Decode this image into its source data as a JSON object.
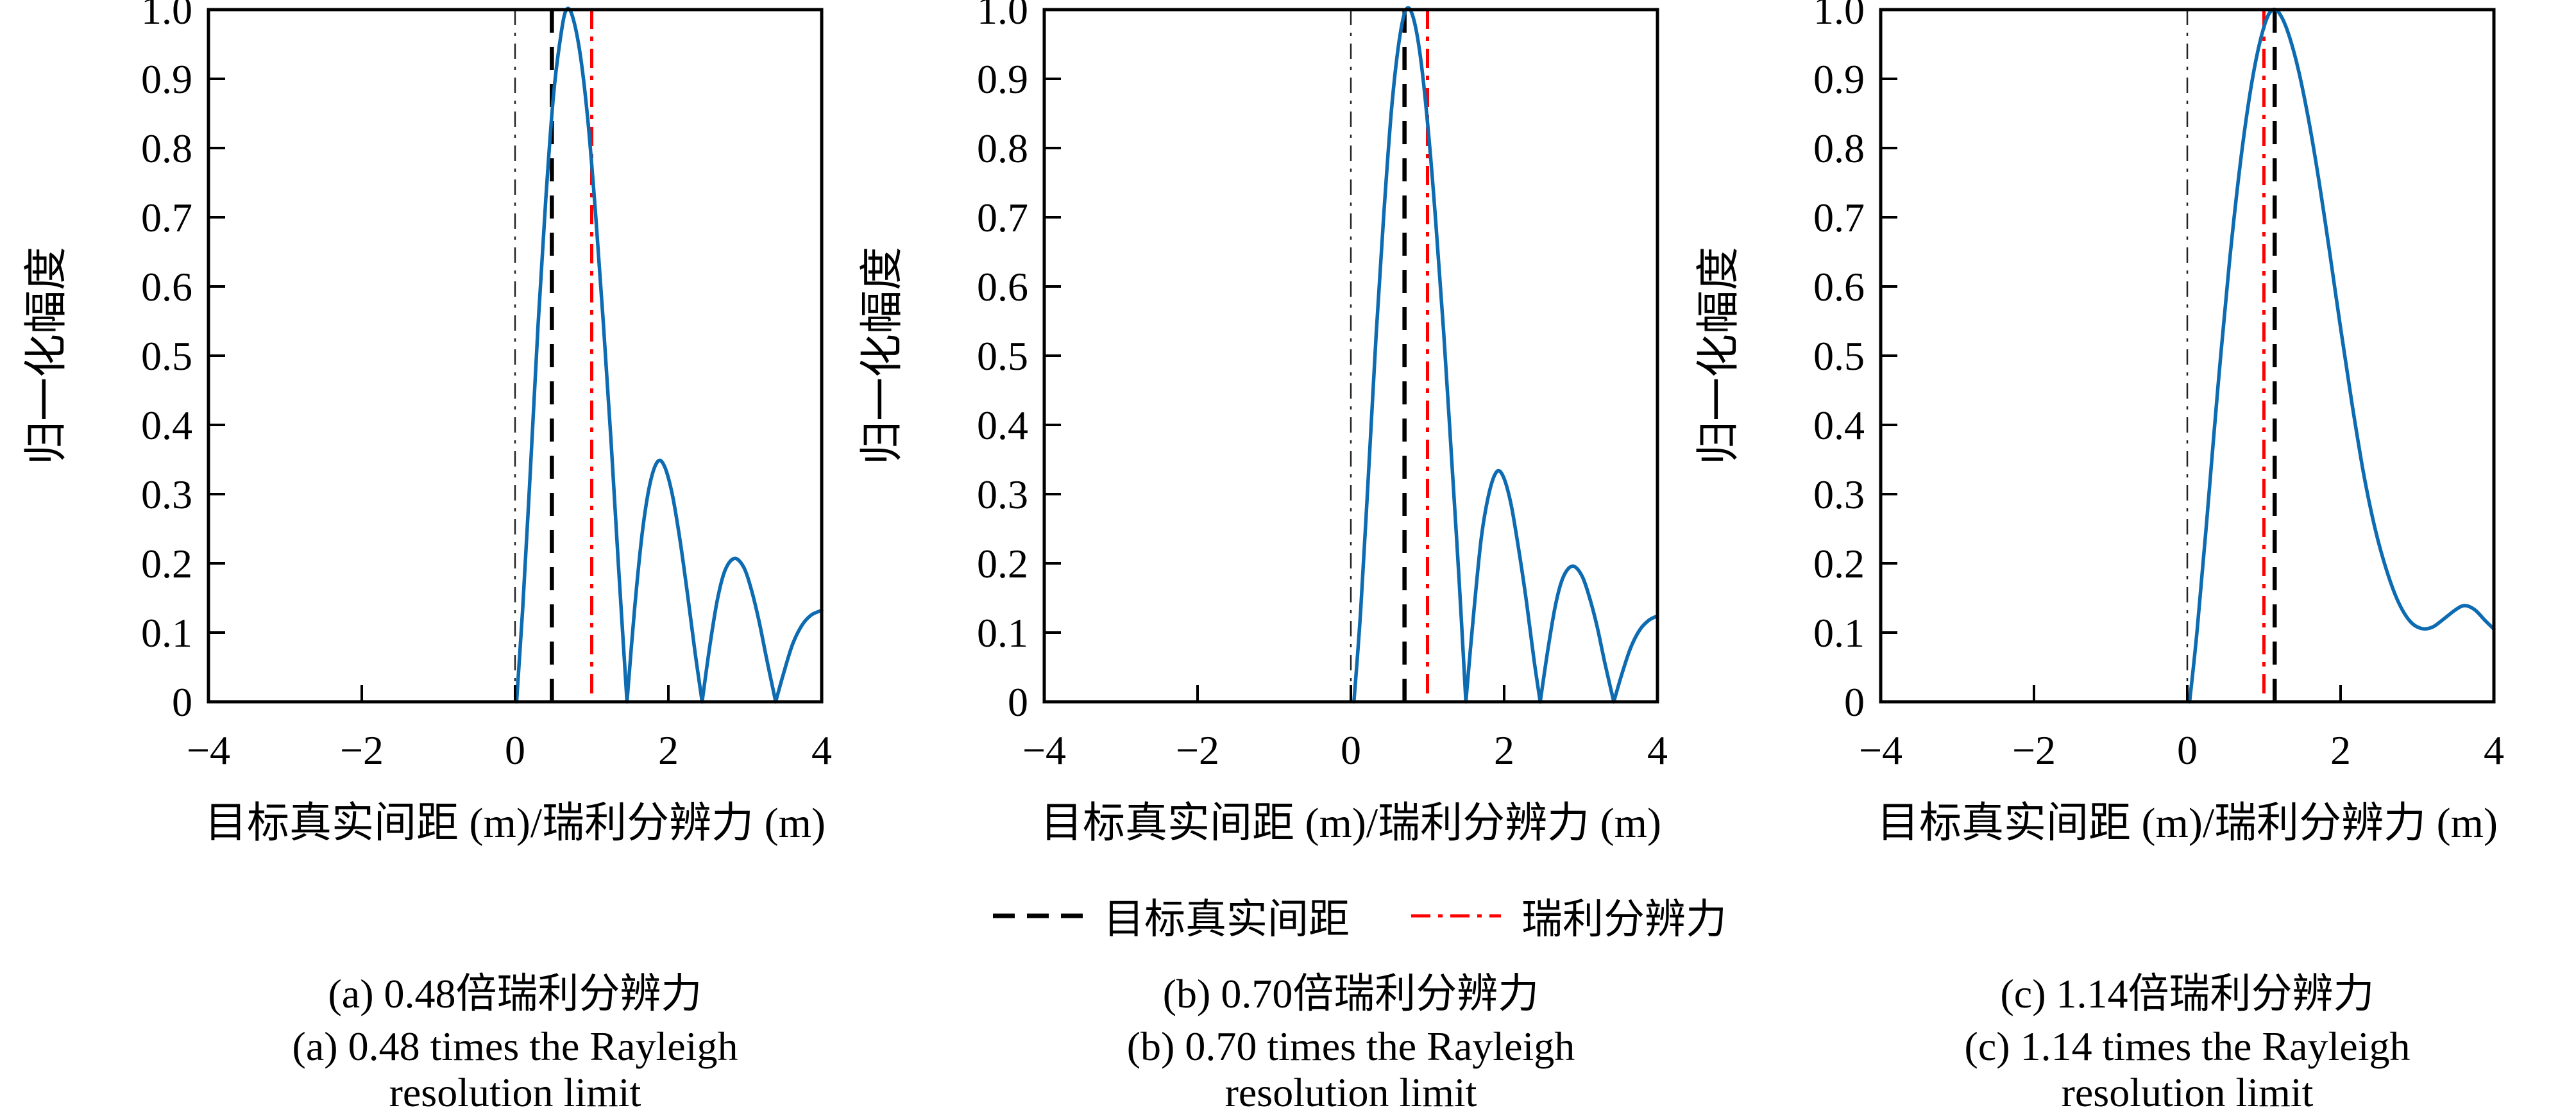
{
  "figure": {
    "ylabel": "归一化幅度",
    "xlabel": "目标真实间距 (m)/瑞利分辨力 (m)",
    "background": "#ffffff"
  },
  "colors": {
    "curve": "#0d6bb1",
    "target_line": "#000000",
    "rayleigh_line": "#ff0000",
    "zero_line": "#222222",
    "axis": "#000000"
  },
  "legend": {
    "items": [
      {
        "label": "目标真实间距",
        "style": "dashed",
        "color": "#000000"
      },
      {
        "label": "瑞利分辨力",
        "style": "dashdot",
        "color": "#ff0000"
      }
    ]
  },
  "chart_data": [
    {
      "id": "a",
      "type": "line",
      "title_zh": "(a) 0.48倍瑞利分辨力",
      "title_en_line1": "(a) 0.48 times the Rayleigh",
      "title_en_line2": "resolution limit",
      "target_spacing_ratio": 0.48,
      "xlabel": "目标真实间距 (m)/瑞利分辨力 (m)",
      "ylabel": "归一化幅度",
      "xlim": [
        -4,
        4
      ],
      "ylim": [
        0,
        1
      ],
      "xticks": [
        -4,
        -2,
        0,
        2,
        4
      ],
      "xtick_labels": [
        "−4",
        "−2",
        "0",
        "2",
        "4"
      ],
      "yticks": [
        0,
        0.1,
        0.2,
        0.3,
        0.4,
        0.5,
        0.6,
        0.7,
        0.8,
        0.9,
        1.0
      ],
      "ytick_labels": [
        "0",
        "0.1",
        "0.2",
        "0.3",
        "0.4",
        "0.5",
        "0.6",
        "0.7",
        "0.8",
        "0.9",
        "1.0"
      ],
      "vlines": [
        {
          "x": 0,
          "role": "zero-reference",
          "style": "thin-dashdot",
          "color": "#222222"
        },
        {
          "x": 0.48,
          "role": "target-true-spacing",
          "style": "dashed",
          "color": "#000000"
        },
        {
          "x": 1.0,
          "role": "rayleigh-resolution",
          "style": "dashdot",
          "color": "#ff0000"
        }
      ],
      "series": [
        {
          "name": "归一化幅度",
          "color": "#0d6bb1",
          "lobes": [
            [
              [
                0.02,
                0
              ],
              [
                0.1,
                0.135
              ],
              [
                0.2,
                0.335
              ],
              [
                0.3,
                0.545
              ],
              [
                0.4,
                0.725
              ],
              [
                0.5,
                0.875
              ],
              [
                0.6,
                0.965
              ],
              [
                0.67,
                1.0
              ],
              [
                0.75,
                0.99
              ],
              [
                0.85,
                0.935
              ],
              [
                0.95,
                0.84
              ],
              [
                1.05,
                0.705
              ],
              [
                1.15,
                0.55
              ],
              [
                1.25,
                0.38
              ],
              [
                1.35,
                0.195
              ],
              [
                1.46,
                0
              ]
            ],
            [
              [
                1.46,
                0
              ],
              [
                1.56,
                0.135
              ],
              [
                1.66,
                0.245
              ],
              [
                1.76,
                0.315
              ],
              [
                1.86,
                0.347
              ],
              [
                1.95,
                0.34
              ],
              [
                2.05,
                0.3
              ],
              [
                2.15,
                0.235
              ],
              [
                2.25,
                0.155
              ],
              [
                2.35,
                0.07
              ],
              [
                2.44,
                0
              ]
            ],
            [
              [
                2.44,
                0
              ],
              [
                2.54,
                0.08
              ],
              [
                2.64,
                0.148
              ],
              [
                2.74,
                0.19
              ],
              [
                2.86,
                0.207
              ],
              [
                2.98,
                0.195
              ],
              [
                3.08,
                0.163
              ],
              [
                3.18,
                0.118
              ],
              [
                3.28,
                0.063
              ],
              [
                3.4,
                0
              ]
            ],
            [
              [
                3.4,
                0
              ],
              [
                3.5,
                0.04
              ],
              [
                3.62,
                0.083
              ],
              [
                3.74,
                0.11
              ],
              [
                3.86,
                0.125
              ],
              [
                4.0,
                0.132
              ]
            ]
          ]
        }
      ]
    },
    {
      "id": "b",
      "type": "line",
      "title_zh": "(b) 0.70倍瑞利分辨力",
      "title_en_line1": "(b) 0.70 times the Rayleigh",
      "title_en_line2": "resolution limit",
      "target_spacing_ratio": 0.7,
      "xlabel": "目标真实间距 (m)/瑞利分辨力 (m)",
      "ylabel": "归一化幅度",
      "xlim": [
        -4,
        4
      ],
      "ylim": [
        0,
        1
      ],
      "xticks": [
        -4,
        -2,
        0,
        2,
        4
      ],
      "xtick_labels": [
        "−4",
        "−2",
        "0",
        "2",
        "4"
      ],
      "yticks": [
        0,
        0.1,
        0.2,
        0.3,
        0.4,
        0.5,
        0.6,
        0.7,
        0.8,
        0.9,
        1.0
      ],
      "ytick_labels": [
        "0",
        "0.1",
        "0.2",
        "0.3",
        "0.4",
        "0.5",
        "0.6",
        "0.7",
        "0.8",
        "0.9",
        "1.0"
      ],
      "vlines": [
        {
          "x": 0,
          "role": "zero-reference",
          "style": "thin-dashdot",
          "color": "#222222"
        },
        {
          "x": 0.7,
          "role": "target-true-spacing",
          "style": "dashed",
          "color": "#000000"
        },
        {
          "x": 1.0,
          "role": "rayleigh-resolution",
          "style": "dashdot",
          "color": "#ff0000"
        }
      ],
      "series": [
        {
          "name": "归一化幅度",
          "color": "#0d6bb1",
          "lobes": [
            [
              [
                0.04,
                0
              ],
              [
                0.13,
                0.135
              ],
              [
                0.23,
                0.33
              ],
              [
                0.33,
                0.53
              ],
              [
                0.43,
                0.705
              ],
              [
                0.53,
                0.855
              ],
              [
                0.63,
                0.955
              ],
              [
                0.72,
                1.0
              ],
              [
                0.81,
                0.99
              ],
              [
                0.91,
                0.93
              ],
              [
                1.01,
                0.825
              ],
              [
                1.11,
                0.69
              ],
              [
                1.21,
                0.535
              ],
              [
                1.31,
                0.36
              ],
              [
                1.41,
                0.18
              ],
              [
                1.5,
                0
              ]
            ],
            [
              [
                1.5,
                0
              ],
              [
                1.6,
                0.125
              ],
              [
                1.7,
                0.235
              ],
              [
                1.8,
                0.3
              ],
              [
                1.9,
                0.332
              ],
              [
                1.99,
                0.325
              ],
              [
                2.09,
                0.285
              ],
              [
                2.19,
                0.22
              ],
              [
                2.29,
                0.145
              ],
              [
                2.39,
                0.06
              ],
              [
                2.47,
                0
              ]
            ],
            [
              [
                2.47,
                0
              ],
              [
                2.57,
                0.075
              ],
              [
                2.67,
                0.14
              ],
              [
                2.77,
                0.18
              ],
              [
                2.89,
                0.196
              ],
              [
                3.01,
                0.183
              ],
              [
                3.11,
                0.152
              ],
              [
                3.21,
                0.11
              ],
              [
                3.31,
                0.058
              ],
              [
                3.43,
                0
              ]
            ],
            [
              [
                3.43,
                0
              ],
              [
                3.53,
                0.038
              ],
              [
                3.65,
                0.078
              ],
              [
                3.77,
                0.104
              ],
              [
                3.89,
                0.118
              ],
              [
                4.0,
                0.124
              ]
            ]
          ]
        }
      ]
    },
    {
      "id": "c",
      "type": "line",
      "title_zh": "(c) 1.14倍瑞利分辨力",
      "title_en_line1": "(c) 1.14 times the Rayleigh",
      "title_en_line2": "resolution limit",
      "target_spacing_ratio": 1.14,
      "xlabel": "目标真实间距 (m)/瑞利分辨力 (m)",
      "ylabel": "归一化幅度",
      "xlim": [
        -4,
        4
      ],
      "ylim": [
        0,
        1
      ],
      "xticks": [
        -4,
        -2,
        0,
        2,
        4
      ],
      "xtick_labels": [
        "−4",
        "−2",
        "0",
        "2",
        "4"
      ],
      "yticks": [
        0,
        0.1,
        0.2,
        0.3,
        0.4,
        0.5,
        0.6,
        0.7,
        0.8,
        0.9,
        1.0
      ],
      "ytick_labels": [
        "0",
        "0.1",
        "0.2",
        "0.3",
        "0.4",
        "0.5",
        "0.6",
        "0.7",
        "0.8",
        "0.9",
        "1.0"
      ],
      "vlines": [
        {
          "x": 0,
          "role": "zero-reference",
          "style": "thin-dashdot",
          "color": "#222222"
        },
        {
          "x": 1.0,
          "role": "rayleigh-resolution",
          "style": "dashdot",
          "color": "#ff0000"
        },
        {
          "x": 1.14,
          "role": "target-true-spacing",
          "style": "dashed",
          "color": "#000000"
        }
      ],
      "series": [
        {
          "name": "归一化幅度",
          "color": "#0d6bb1",
          "lobes": [
            [
              [
                0.03,
                0
              ],
              [
                0.13,
                0.105
              ],
              [
                0.26,
                0.27
              ],
              [
                0.4,
                0.455
              ],
              [
                0.55,
                0.635
              ],
              [
                0.7,
                0.785
              ],
              [
                0.85,
                0.9
              ],
              [
                1.0,
                0.975
              ],
              [
                1.12,
                1.0
              ],
              [
                1.25,
                0.985
              ],
              [
                1.4,
                0.935
              ],
              [
                1.55,
                0.86
              ],
              [
                1.7,
                0.765
              ],
              [
                1.85,
                0.655
              ],
              [
                2.0,
                0.54
              ],
              [
                2.15,
                0.43
              ],
              [
                2.3,
                0.33
              ],
              [
                2.45,
                0.25
              ],
              [
                2.6,
                0.19
              ],
              [
                2.75,
                0.145
              ],
              [
                2.9,
                0.117
              ],
              [
                3.05,
                0.106
              ],
              [
                3.2,
                0.108
              ],
              [
                3.35,
                0.12
              ],
              [
                3.5,
                0.133
              ],
              [
                3.62,
                0.139
              ],
              [
                3.75,
                0.133
              ],
              [
                3.88,
                0.118
              ],
              [
                4.0,
                0.105
              ]
            ]
          ]
        }
      ]
    }
  ]
}
